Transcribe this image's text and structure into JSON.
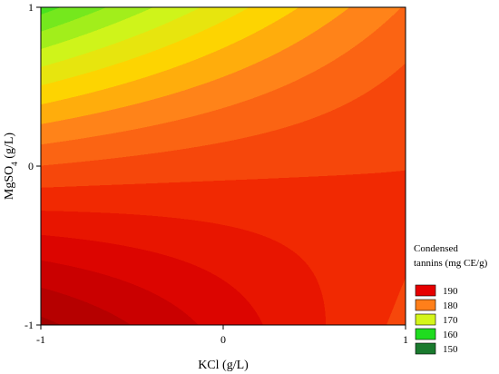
{
  "chart_data": {
    "type": "heatmap",
    "subtype": "contour",
    "title": "",
    "xlabel": "KCl (g/L)",
    "ylabel": "MgSO4 (g/L)",
    "ylabel_parts": {
      "base": "MgSO",
      "sub": "4",
      "unit": " (g/L)"
    },
    "xlim": [
      -1,
      1
    ],
    "ylim": [
      -1,
      1
    ],
    "x_ticks": [
      -1,
      0,
      1
    ],
    "x_tick_labels": [
      "-1",
      "0",
      "1"
    ],
    "y_ticks": [
      -1,
      0,
      1
    ],
    "y_tick_labels": [
      "-1",
      "0",
      "1"
    ],
    "grid": false,
    "legend": {
      "title_lines": [
        "Condensed",
        "tannins (mg CE/g)"
      ],
      "placement": "right",
      "entries": [
        {
          "label": "190",
          "color": "#e60000"
        },
        {
          "label": "180",
          "color": "#ff7f1a"
        },
        {
          "label": "170",
          "color": "#d4f51a"
        },
        {
          "label": "160",
          "color": "#1fdc1f"
        },
        {
          "label": "150",
          "color": "#1a7a2e"
        }
      ]
    },
    "z_range": [
      146,
      200
    ],
    "contour_step": 2.5,
    "colormap_stops": [
      {
        "z": 146,
        "color": "#0e5a2a"
      },
      {
        "z": 150,
        "color": "#1a8a34"
      },
      {
        "z": 160,
        "color": "#1fdc1f"
      },
      {
        "z": 170,
        "color": "#d4f51a"
      },
      {
        "z": 175,
        "color": "#ffd200"
      },
      {
        "z": 180,
        "color": "#ff7f1a"
      },
      {
        "z": 188,
        "color": "#f02000"
      },
      {
        "z": 193,
        "color": "#d80000"
      },
      {
        "z": 200,
        "color": "#a00000"
      }
    ],
    "response_surface": {
      "form": "z = b0 + b1*x + b2*y + b11*x^2 + b22*y^2 + b12*x*y",
      "b0": 185.1,
      "b1": 1.2,
      "b2": -10.2,
      "b11": -0.35,
      "b22": -2.75,
      "b12": 8.2
    }
  }
}
